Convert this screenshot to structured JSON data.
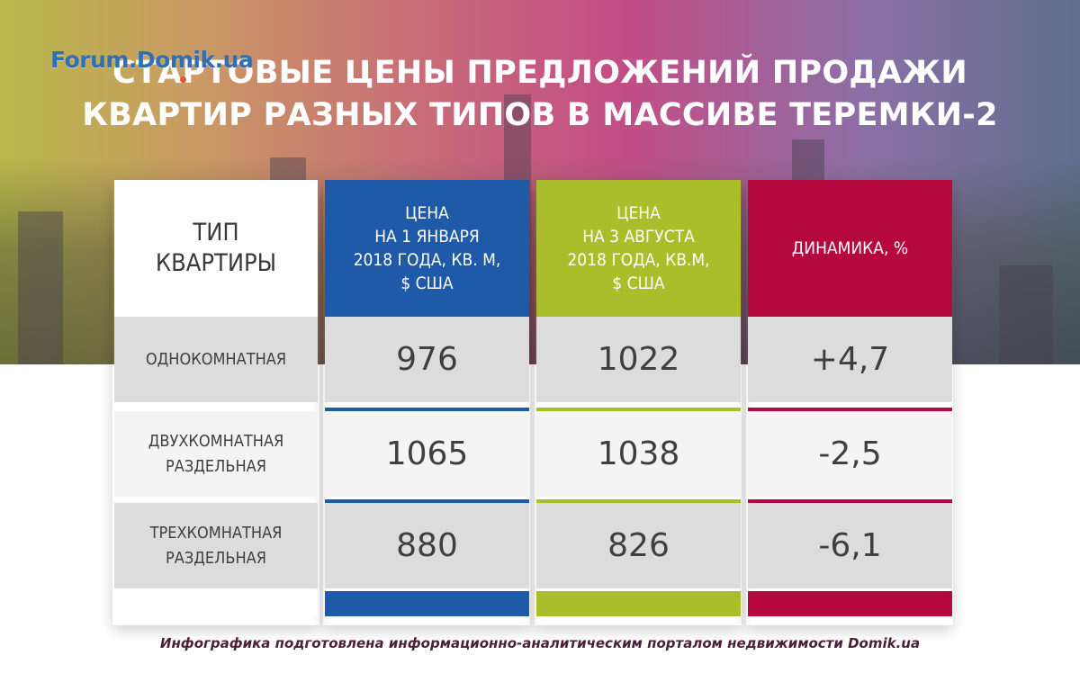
{
  "watermark": "Forum.Domik.ua",
  "title_line1": "Стартовые цены предложений продажи",
  "title_line2": "квартир разных типов в массиве Теремки-2",
  "colors": {
    "jan": "#1e5aa8",
    "aug": "#aabd2a",
    "dynamics": "#b4083f",
    "row_gray": "#dcdcdc"
  },
  "chart_data": {
    "type": "table",
    "headers": {
      "type": "Тип квартиры",
      "jan": "Цена на 1 января 2018 года, кв. м, $ США",
      "aug": "Цена на 3 августа 2018 года, кв.м, $ США",
      "dynamics": "Динамика, %"
    },
    "header_lines": {
      "type": [
        "Тип",
        "квартиры"
      ],
      "jan": [
        "Цена",
        "на 1 января",
        "2018 года, кв. м,",
        "$ США"
      ],
      "aug": [
        "Цена",
        "на 3 августа",
        "2018 года, кв.м,",
        "$ США"
      ],
      "dynamics": [
        "Динамика, %"
      ]
    },
    "rows": [
      {
        "type_lines": [
          "Однокомнатная"
        ],
        "jan": "976",
        "aug": "1022",
        "dynamics": "+4,7"
      },
      {
        "type_lines": [
          "Двухкомнатная",
          "раздельная"
        ],
        "jan": "1065",
        "aug": "1038",
        "dynamics": "-2,5"
      },
      {
        "type_lines": [
          "Трехкомнатная",
          "раздельная"
        ],
        "jan": "880",
        "aug": "826",
        "dynamics": "-6,1"
      }
    ]
  },
  "footer": "Инфографика подготовлена информационно-аналитическим порталом недвижимости Domik.ua"
}
